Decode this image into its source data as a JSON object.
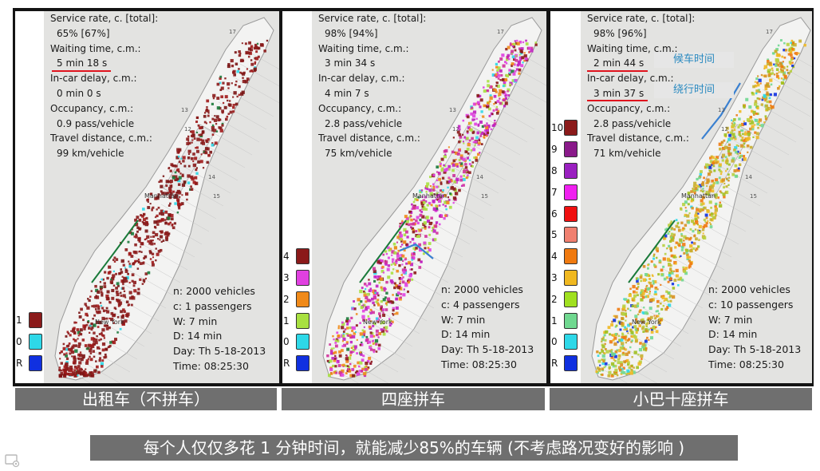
{
  "panels": [
    {
      "id": "taxi",
      "stats": {
        "service_label": "Service rate, c. [total]:",
        "service_value": "65%   [67%]",
        "waiting_label": "Waiting time, c.m.:",
        "waiting_value": "5 min 18 s",
        "delay_label": "In-car delay, c.m.:",
        "delay_value": "0 min 0 s",
        "occupancy_label": "Occupancy, c.m.:",
        "occupancy_value": "0.9 pass/vehicle",
        "distance_label": "Travel distance, c.m.:",
        "distance_value": "99 km/vehicle"
      },
      "info": {
        "n": "n: 2000 vehicles",
        "c": "c: 1 passengers",
        "w": "W: 7 min",
        "d": "D: 14 min",
        "day": "Day: Th 5-18-2013",
        "time": "Time: 08:25:30"
      },
      "legend": [
        {
          "label": "1",
          "color": "#8b1a1a"
        },
        {
          "label": "0",
          "color": "#2ed8e8"
        },
        {
          "label": "R",
          "color": "#1030e0"
        }
      ],
      "caption": "出租车（不拼车）"
    },
    {
      "id": "four-seat",
      "stats": {
        "service_label": "Service rate, c. [total]:",
        "service_value": "98%   [94%]",
        "waiting_label": "Waiting time, c.m.:",
        "waiting_value": "3 min 34 s",
        "delay_label": "In-car delay, c.m.:",
        "delay_value": "4 min 7 s",
        "occupancy_label": "Occupancy, c.m.:",
        "occupancy_value": "2.8 pass/vehicle",
        "distance_label": "Travel distance, c.m.:",
        "distance_value": "75 km/vehicle"
      },
      "info": {
        "n": "n: 2000 vehicles",
        "c": "c: 4 passengers",
        "w": "W: 7 min",
        "d": "D: 14 min",
        "day": "Day: Th 5-18-2013",
        "time": "Time: 08:25:30"
      },
      "legend": [
        {
          "label": "4",
          "color": "#8b1a1a"
        },
        {
          "label": "3",
          "color": "#e040e0"
        },
        {
          "label": "2",
          "color": "#f08a1a"
        },
        {
          "label": "1",
          "color": "#a8e040"
        },
        {
          "label": "0",
          "color": "#2ed8e8"
        },
        {
          "label": "R",
          "color": "#1030e0"
        }
      ],
      "caption": "四座拼车"
    },
    {
      "id": "minibus",
      "stats": {
        "service_label": "Service rate, c. [total]:",
        "service_value": "98%   [96%]",
        "waiting_label": "Waiting time, c.m.:",
        "waiting_value": "2 min 44 s",
        "delay_label": "In-car delay, c.m.:",
        "delay_value": "3 min 37 s",
        "occupancy_label": "Occupancy, c.m.:",
        "occupancy_value": "2.8 pass/vehicle",
        "distance_label": "Travel distance, c.m.:",
        "distance_value": "71 km/vehicle"
      },
      "info": {
        "n": "n: 2000 vehicles",
        "c": "c: 10 passengers",
        "w": "W: 7 min",
        "d": "D: 14 min",
        "day": "Day: Th 5-18-2013",
        "time": "Time: 08:25:30"
      },
      "legend": [
        {
          "label": "10",
          "color": "#8b1a1a"
        },
        {
          "label": "9",
          "color": "#8a1a8a"
        },
        {
          "label": "8",
          "color": "#9a20c0"
        },
        {
          "label": "7",
          "color": "#f020f0"
        },
        {
          "label": "6",
          "color": "#f01010"
        },
        {
          "label": "5",
          "color": "#f08070"
        },
        {
          "label": "4",
          "color": "#f07a10"
        },
        {
          "label": "3",
          "color": "#f0b820"
        },
        {
          "label": "2",
          "color": "#a0e020"
        },
        {
          "label": "1",
          "color": "#70d890"
        },
        {
          "label": "0",
          "color": "#2ed8e8"
        },
        {
          "label": "R",
          "color": "#1030e0"
        }
      ],
      "annotations": {
        "waiting": "候车时间",
        "delay": "绕行时间"
      },
      "caption": "小巴十座拼车"
    }
  ],
  "map_labels": {
    "manhattan": "Manhattan",
    "newyork": "New York"
  },
  "banner": "每个人仅仅多花 1 分钟时间，就能减少85%的车辆 (不考虑路况变好的影响 )",
  "colors": {
    "caption_bg": "#6f6f6f",
    "accent_red": "#e0141e",
    "annot_text": "#2a8ac0"
  }
}
